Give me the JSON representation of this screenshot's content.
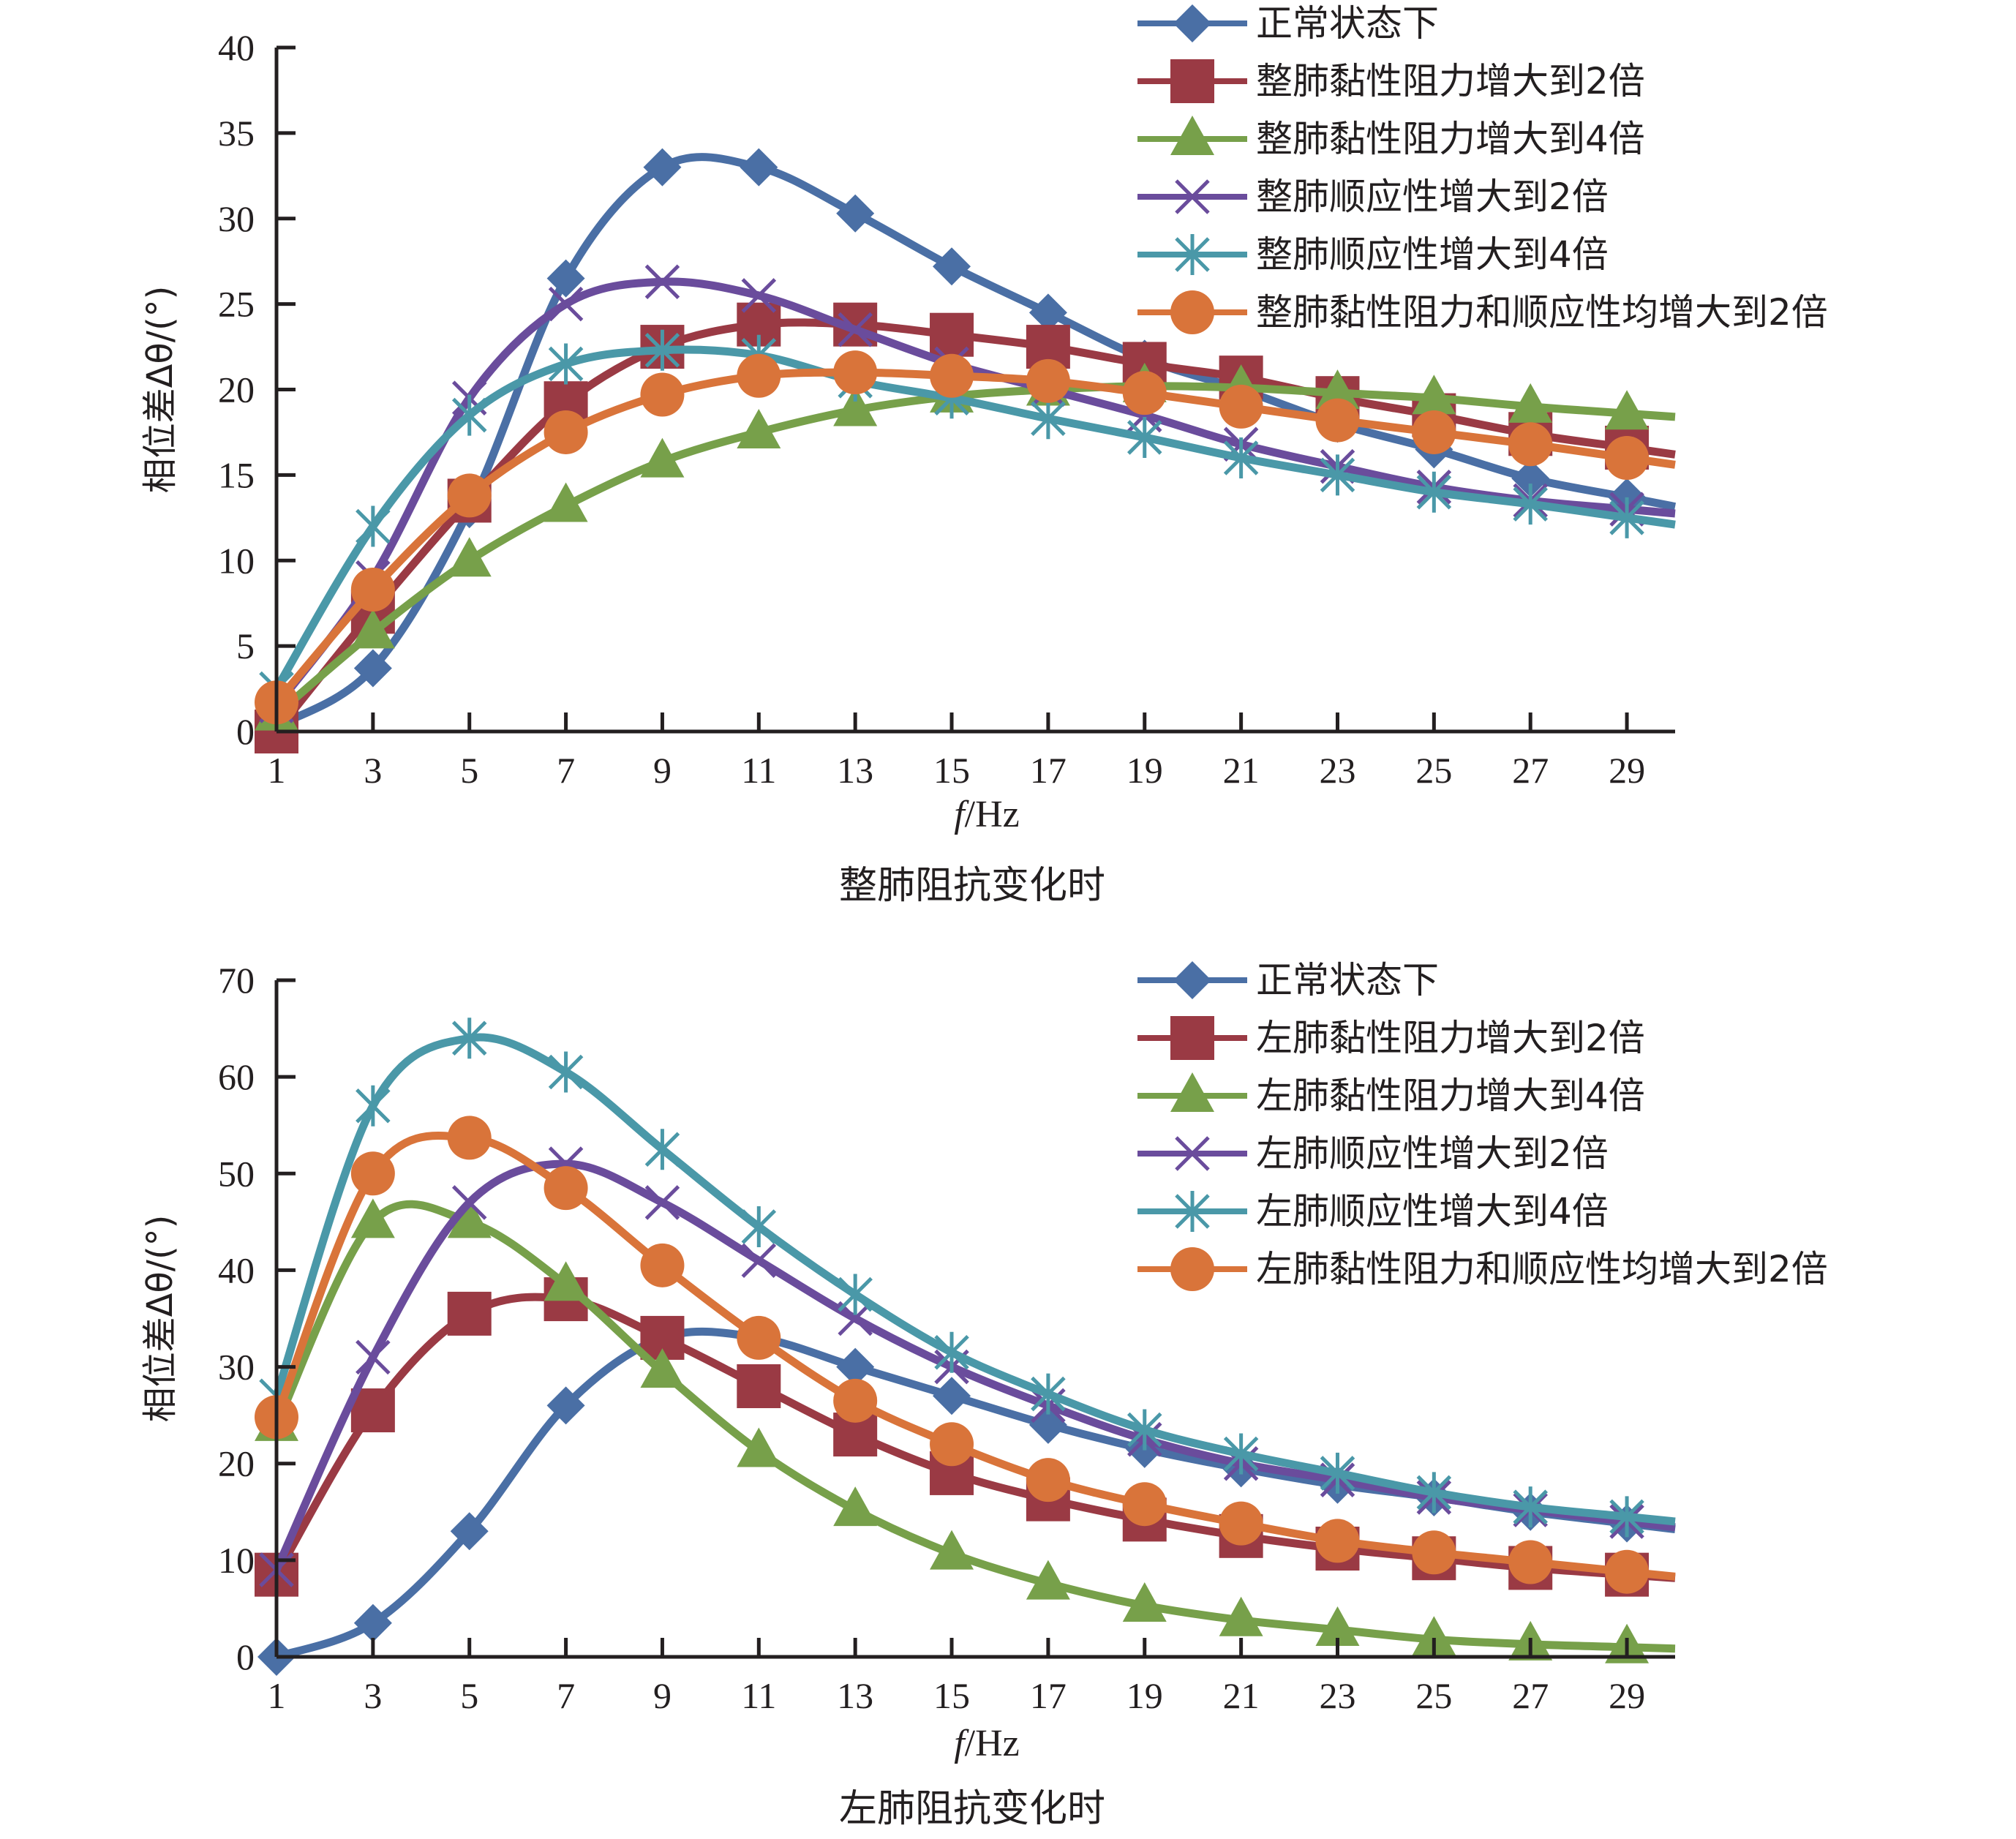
{
  "chart_data": [
    {
      "type": "line",
      "title": "整肺阻抗变化时",
      "xlabel_italic": "f",
      "xlabel_rest": "/Hz",
      "ylabel": "相位差Δθ/(°)",
      "xlim": [
        1,
        30
      ],
      "ylim": [
        0,
        40
      ],
      "yticks": [
        0,
        5,
        10,
        15,
        20,
        25,
        30,
        35,
        40
      ],
      "xticks": [
        1,
        3,
        5,
        7,
        9,
        11,
        13,
        15,
        17,
        19,
        21,
        23,
        25,
        27,
        29
      ],
      "grid": false,
      "legend_position": "top-right",
      "x": [
        1,
        3,
        5,
        7,
        9,
        11,
        13,
        15,
        17,
        19,
        21,
        23,
        25,
        27,
        29
      ],
      "series": [
        {
          "name": "正常状态下",
          "color": "#4a6fa5",
          "marker": "diamond",
          "values": [
            0.3,
            3.7,
            13.0,
            26.5,
            33.0,
            33.0,
            30.3,
            27.2,
            24.5,
            21.8,
            20.0,
            18.0,
            16.5,
            14.8,
            13.7
          ]
        },
        {
          "name": "整肺黏性阻力增大到2倍",
          "color": "#9a3a44",
          "marker": "square",
          "values": [
            0.0,
            7.0,
            13.5,
            19.2,
            22.5,
            23.8,
            23.8,
            23.2,
            22.5,
            21.5,
            20.7,
            19.5,
            18.5,
            17.4,
            16.6
          ]
        },
        {
          "name": "整肺黏性阻力增大到4倍",
          "color": "#77a04a",
          "marker": "triangle",
          "values": [
            1.0,
            5.8,
            10.0,
            13.2,
            15.8,
            17.5,
            18.8,
            19.6,
            20.0,
            20.2,
            20.1,
            19.8,
            19.5,
            19.0,
            18.6
          ]
        },
        {
          "name": "整肺顺应性增大到2倍",
          "color": "#6a4c9c",
          "marker": "x",
          "values": [
            1.5,
            9.0,
            19.5,
            25.0,
            26.3,
            25.5,
            23.5,
            21.5,
            20.0,
            18.5,
            16.8,
            15.5,
            14.3,
            13.5,
            13.0
          ]
        },
        {
          "name": "整肺顺应性增大到4倍",
          "color": "#4a98a8",
          "marker": "star",
          "values": [
            2.5,
            12.0,
            18.5,
            21.5,
            22.3,
            22.0,
            20.5,
            19.5,
            18.3,
            17.2,
            16.0,
            15.0,
            14.0,
            13.3,
            12.5
          ]
        },
        {
          "name": "整肺黏性阻力和顺应性均增大到2倍",
          "color": "#d9743a",
          "marker": "circle",
          "values": [
            1.7,
            8.3,
            13.8,
            17.5,
            19.7,
            20.8,
            21.0,
            20.8,
            20.5,
            19.8,
            19.0,
            18.2,
            17.5,
            16.8,
            16.0
          ]
        }
      ]
    },
    {
      "type": "line",
      "title": "左肺阻抗变化时",
      "xlabel_italic": "f",
      "xlabel_rest": "/Hz",
      "ylabel": "相位差Δθ/(°)",
      "xlim": [
        1,
        30
      ],
      "ylim": [
        0,
        70
      ],
      "yticks": [
        0,
        10,
        20,
        30,
        40,
        50,
        60,
        70
      ],
      "xticks": [
        1,
        3,
        5,
        7,
        9,
        11,
        13,
        15,
        17,
        19,
        21,
        23,
        25,
        27,
        29
      ],
      "grid": false,
      "legend_position": "top-right",
      "x": [
        1,
        3,
        5,
        7,
        9,
        11,
        13,
        15,
        17,
        19,
        21,
        23,
        25,
        27,
        29
      ],
      "series": [
        {
          "name": "正常状态下",
          "color": "#4a6fa5",
          "marker": "diamond",
          "values": [
            0.0,
            3.5,
            13.0,
            26.0,
            33.0,
            33.0,
            30.0,
            27.0,
            24.0,
            21.5,
            19.5,
            17.8,
            16.5,
            15.0,
            13.8
          ]
        },
        {
          "name": "左肺黏性阻力增大到2倍",
          "color": "#9a3a44",
          "marker": "square",
          "values": [
            8.5,
            25.5,
            35.5,
            37.0,
            33.0,
            28.0,
            23.0,
            19.0,
            16.3,
            14.2,
            12.5,
            11.2,
            10.2,
            9.2,
            8.5
          ]
        },
        {
          "name": "左肺黏性阻力增大到4倍",
          "color": "#77a04a",
          "marker": "triangle",
          "values": [
            24.0,
            45.0,
            45.0,
            38.5,
            29.5,
            21.3,
            15.2,
            10.7,
            7.6,
            5.3,
            3.8,
            2.8,
            1.8,
            1.3,
            1.0
          ]
        },
        {
          "name": "左肺顺应性增大到2倍",
          "color": "#6a4c9c",
          "marker": "x",
          "values": [
            9.0,
            31.0,
            47.0,
            51.0,
            47.0,
            41.0,
            35.0,
            30.0,
            26.0,
            22.5,
            20.0,
            18.3,
            16.5,
            15.2,
            14.0
          ]
        },
        {
          "name": "左肺顺应性增大到4倍",
          "color": "#4a98a8",
          "marker": "star",
          "values": [
            27.0,
            57.0,
            64.0,
            60.5,
            52.5,
            44.5,
            37.5,
            31.5,
            27.2,
            23.5,
            21.0,
            19.0,
            17.0,
            15.5,
            14.5
          ]
        },
        {
          "name": "左肺黏性阻力和顺应性均增大到2倍",
          "color": "#d9743a",
          "marker": "circle",
          "values": [
            24.8,
            50.0,
            53.7,
            48.5,
            40.5,
            33.0,
            26.5,
            22.0,
            18.3,
            15.8,
            13.8,
            12.0,
            10.8,
            9.8,
            8.8
          ]
        }
      ]
    }
  ]
}
